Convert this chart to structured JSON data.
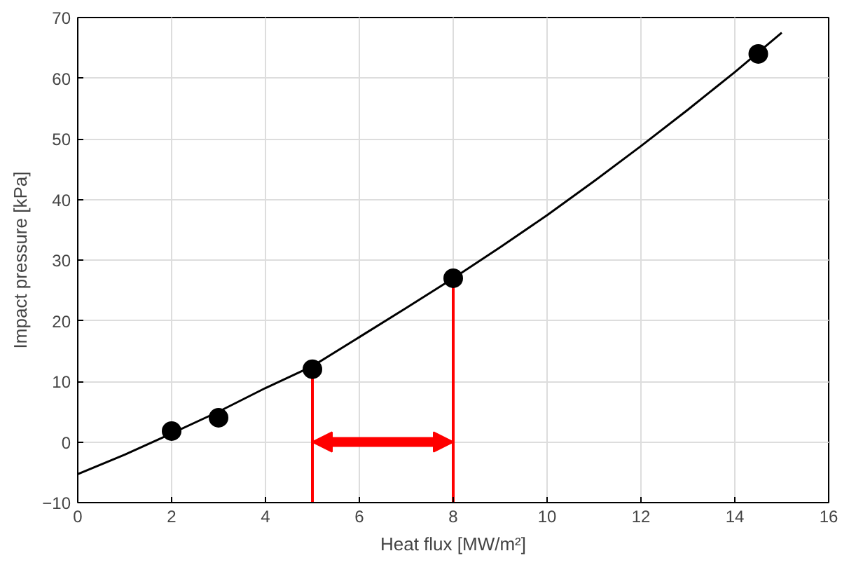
{
  "chart_data": {
    "type": "scatter",
    "xlabel": "Heat flux [MW/m²]",
    "ylabel": "Impact pressure [kPa]",
    "series": [
      {
        "color": "#000000",
        "x": [
          2,
          3,
          5,
          8,
          14.5
        ],
        "values": [
          1.8,
          4,
          12,
          27,
          64
        ],
        "marker": "circle"
      },
      {
        "type": "line",
        "color": "#000000",
        "x": [
          0,
          1,
          2,
          3,
          4,
          5,
          6,
          7,
          8,
          9,
          10,
          11,
          12,
          13,
          14,
          15
        ],
        "values": [
          -5.3,
          -2.1,
          1.4,
          5.0,
          8.9,
          12.5,
          17.3,
          22.1,
          27.0,
          32.1,
          37.4,
          43.0,
          48.8,
          54.8,
          61.0,
          67.5
        ],
        "marker": "none"
      }
    ],
    "ref_lines": [
      {
        "axis": "x",
        "value": 5,
        "color": "#ff0000"
      },
      {
        "axis": "x",
        "value": 8,
        "color": "#ff0000"
      }
    ],
    "xlim": [
      0,
      16
    ],
    "xticks": [
      0,
      2,
      4,
      6,
      8,
      10,
      12,
      14,
      16
    ],
    "ylim": [
      -10,
      70
    ],
    "yticks": [
      -10,
      0,
      10,
      20,
      30,
      40,
      50,
      60,
      70
    ],
    "grid": true
  }
}
